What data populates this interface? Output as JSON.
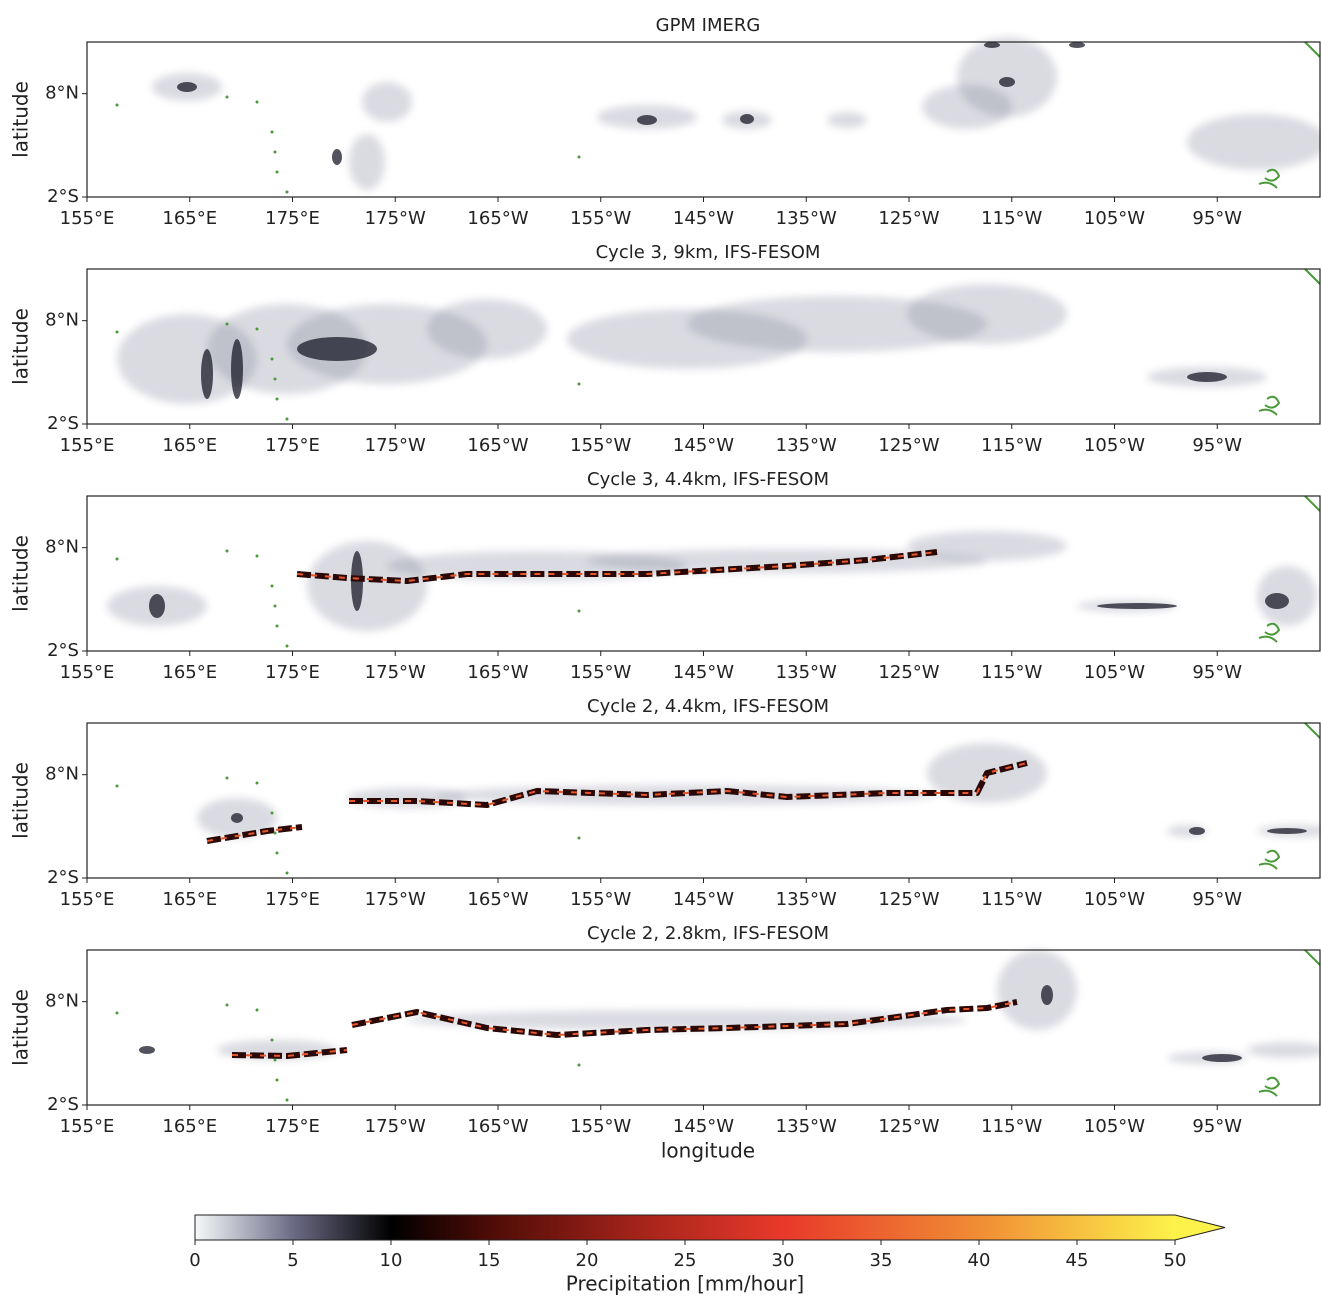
{
  "panels": [
    {
      "title": "GPM IMERG"
    },
    {
      "title": "Cycle 3, 9km, IFS-FESOM"
    },
    {
      "title": "Cycle 3, 4.4km, IFS-FESOM"
    },
    {
      "title": "Cycle 2, 4.4km, IFS-FESOM"
    },
    {
      "title": "Cycle 2, 2.8km, IFS-FESOM"
    }
  ],
  "ylabel": "latitude",
  "xlabel": "longitude",
  "xlim": [
    155,
    275
  ],
  "ylim": [
    -2,
    13
  ],
  "xticks": [
    {
      "value": 155,
      "label": "155°E"
    },
    {
      "value": 165,
      "label": "165°E"
    },
    {
      "value": 175,
      "label": "175°E"
    },
    {
      "value": 185,
      "label": "175°W"
    },
    {
      "value": 195,
      "label": "165°W"
    },
    {
      "value": 205,
      "label": "155°W"
    },
    {
      "value": 215,
      "label": "145°W"
    },
    {
      "value": 225,
      "label": "135°W"
    },
    {
      "value": 235,
      "label": "125°W"
    },
    {
      "value": 245,
      "label": "115°W"
    },
    {
      "value": 255,
      "label": "105°W"
    },
    {
      "value": 265,
      "label": "95°W"
    }
  ],
  "yticks": [
    {
      "value": -2,
      "label": "2°S"
    },
    {
      "value": 8,
      "label": "8°N"
    }
  ],
  "colorbar": {
    "label": "Precipitation [mm/hour]",
    "lim": [
      0,
      50
    ],
    "ticks": [
      0,
      5,
      10,
      15,
      20,
      25,
      30,
      35,
      40,
      45,
      50
    ]
  }
}
